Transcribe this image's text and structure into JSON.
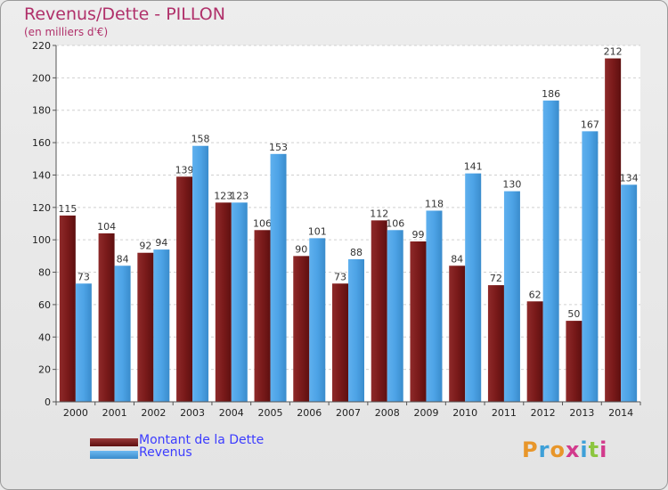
{
  "header": {
    "title": "Revenus/Dette - PILLON",
    "subtitle": "(en milliers d'€)"
  },
  "colors": {
    "dette": "#7a1a1a",
    "revenus": "#4da3e6",
    "dette_light": "#a23a3a",
    "revenus_light": "#6cb8f0"
  },
  "chart_data": {
    "type": "bar",
    "title": "Revenus/Dette - PILLON",
    "ylabel": "(en milliers d'€)",
    "xlabel": "",
    "ylim": [
      0,
      220
    ],
    "yticks": [
      0,
      20,
      40,
      60,
      80,
      100,
      120,
      140,
      160,
      180,
      200,
      220
    ],
    "categories": [
      "2000",
      "2001",
      "2002",
      "2003",
      "2004",
      "2005",
      "2006",
      "2007",
      "2008",
      "2009",
      "2010",
      "2011",
      "2012",
      "2013",
      "2014"
    ],
    "series": [
      {
        "name": "Montant de la Dette",
        "values": [
          115,
          104,
          92,
          139,
          123,
          106,
          90,
          73,
          112,
          99,
          84,
          72,
          62,
          50,
          212
        ]
      },
      {
        "name": "Revenus",
        "values": [
          73,
          84,
          94,
          158,
          123,
          153,
          101,
          88,
          106,
          118,
          141,
          130,
          186,
          167,
          134
        ]
      }
    ],
    "grid": true,
    "legend": "bottom-left"
  },
  "legend": {
    "items": [
      "Montant de la Dette",
      "Revenus"
    ]
  },
  "logo": {
    "text": "Proxiti"
  }
}
